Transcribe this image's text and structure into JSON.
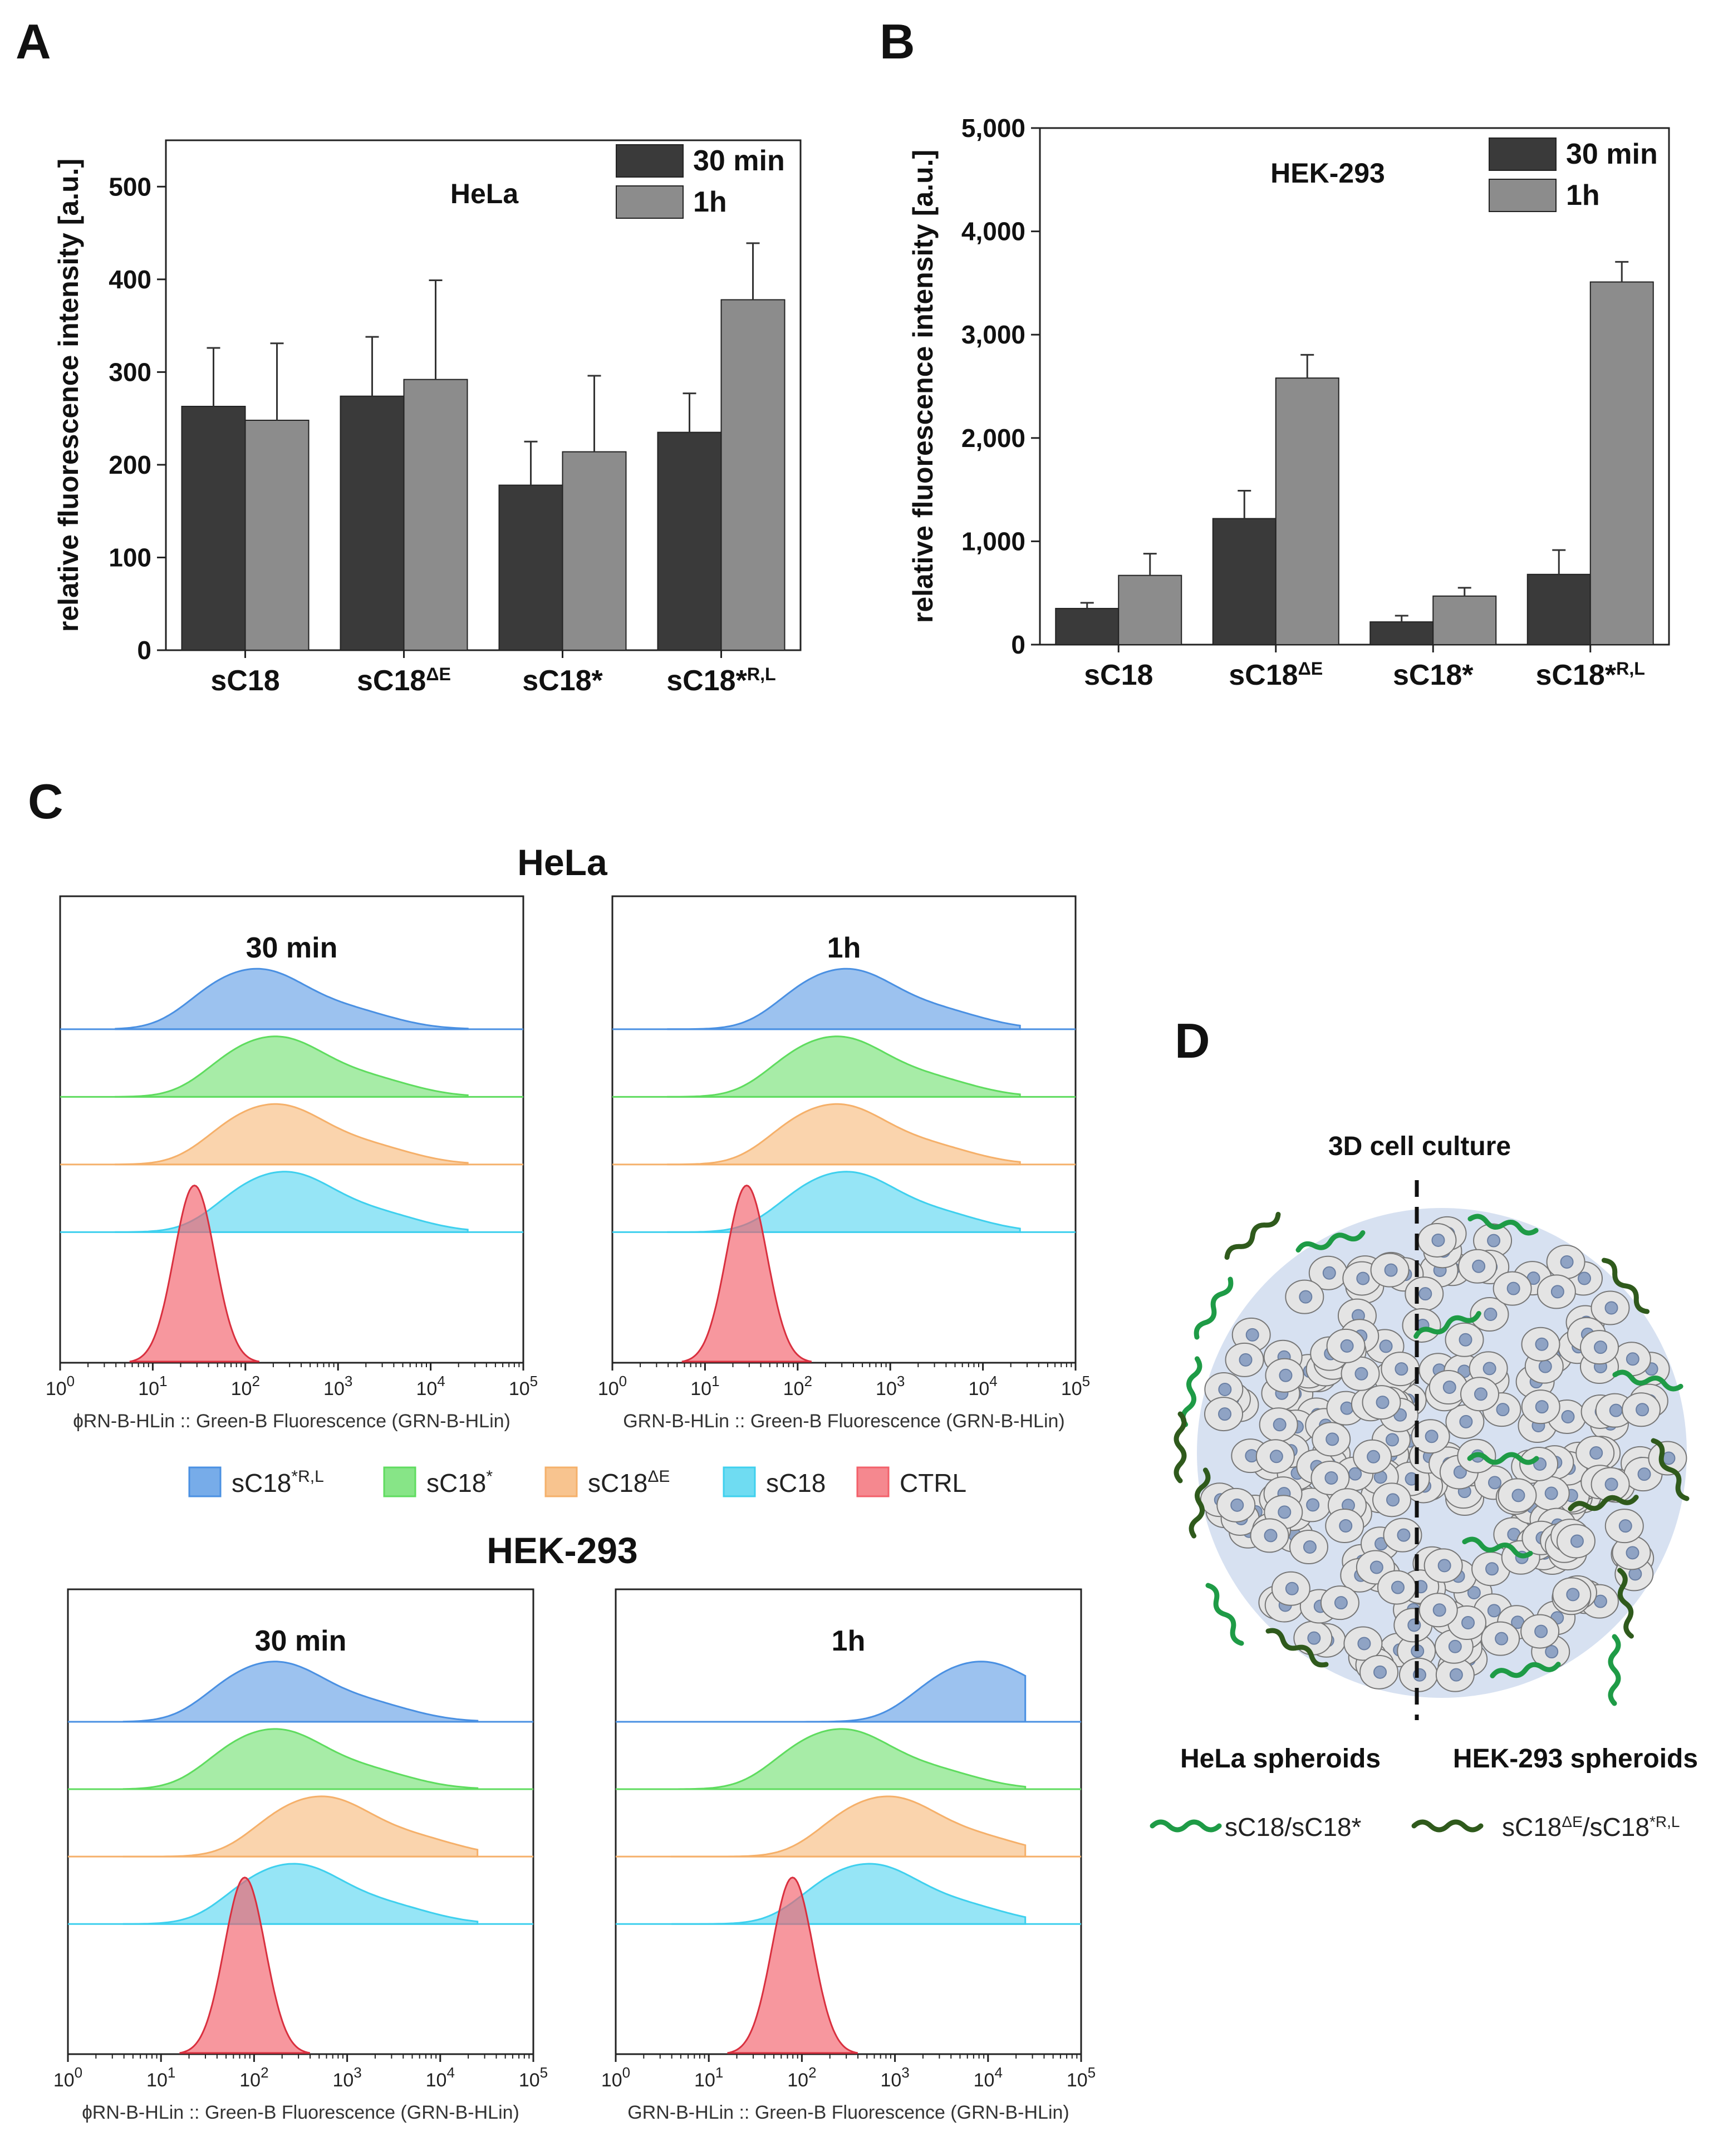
{
  "panels": {
    "A": "A",
    "B": "B",
    "C": "C",
    "D": "D"
  },
  "chart_data": [
    {
      "id": "A",
      "type": "bar",
      "title": "HeLa",
      "ylabel": "relative fluorescence intensity [a.u.]",
      "xlabel": "",
      "ylim": [
        0,
        550
      ],
      "yticks": [
        0,
        100,
        200,
        300,
        400,
        500
      ],
      "ytick_labels": [
        "0",
        "100",
        "200",
        "300",
        "400",
        "500"
      ],
      "categories": [
        "sC18",
        "sC18",
        "sC18*",
        "sC18*"
      ],
      "category_sups": [
        "",
        "ΔE",
        "",
        "R,L"
      ],
      "series": [
        {
          "name": "30 min",
          "color": "#3a3a3a",
          "values": [
            263,
            274,
            178,
            235
          ],
          "errors": [
            63,
            64,
            47,
            42
          ]
        },
        {
          "name": "1h",
          "color": "#8c8c8c",
          "values": [
            248,
            292,
            214,
            378
          ],
          "errors": [
            83,
            107,
            82,
            61
          ]
        }
      ],
      "legend": "top-right",
      "grid": false
    },
    {
      "id": "B",
      "type": "bar",
      "title": "HEK-293",
      "ylabel": "relative fluorescence intensity [a.u.]",
      "xlabel": "",
      "ylim": [
        0,
        5000
      ],
      "yticks": [
        0,
        1000,
        2000,
        3000,
        4000,
        5000
      ],
      "ytick_labels": [
        "0",
        "1,000",
        "2,000",
        "3,000",
        "4,000",
        "5,000"
      ],
      "categories": [
        "sC18",
        "sC18",
        "sC18*",
        "sC18*"
      ],
      "category_sups": [
        "",
        "ΔE",
        "",
        "R,L"
      ],
      "series": [
        {
          "name": "30 min",
          "color": "#3a3a3a",
          "values": [
            350,
            1220,
            220,
            680
          ],
          "errors": [
            55,
            270,
            60,
            235
          ]
        },
        {
          "name": "1h",
          "color": "#8c8c8c",
          "values": [
            670,
            2580,
            470,
            3510
          ],
          "errors": [
            210,
            225,
            80,
            195
          ]
        }
      ],
      "legend": "top-right",
      "grid": false
    },
    {
      "id": "C",
      "type": "area",
      "title_top": "HeLa",
      "title_bottom": "HEK-293",
      "xscale": "log",
      "xlim": [
        1,
        100000
      ],
      "xtick_labels": [
        "10",
        "10",
        "10",
        "10",
        "10",
        "10"
      ],
      "xtick_exps": [
        "0",
        "1",
        "2",
        "3",
        "4",
        "5"
      ],
      "xlabel": "GRN-B-HLin :: Green-B Fluorescence (GRN-B-HLin)",
      "xlabel_cut": "ɸRN-B-HLin :: Green-B Fluorescence (GRN-B-HLin)",
      "legend": [
        {
          "name": "sC18",
          "sup": "*R,L",
          "color": "#4a90e2"
        },
        {
          "name": "sC18",
          "sup": "*",
          "color": "#5fdc5f"
        },
        {
          "name": "sC18",
          "sup": "ΔE",
          "color": "#f5b06a"
        },
        {
          "name": "sC18",
          "sup": "",
          "color": "#3fd0ee"
        },
        {
          "name": "CTRL",
          "sup": "",
          "color": "#f2606a"
        }
      ],
      "plots": [
        {
          "cell": "HeLa",
          "time": "30 min",
          "peaks_log10": {
            "sC18*R,L": 2.2,
            "sC18*": 2.4,
            "sC18ΔE": 2.4,
            "sC18": 2.5,
            "CTRL": 1.45
          }
        },
        {
          "cell": "HeLa",
          "time": "1h",
          "peaks_log10": {
            "sC18*R,L": 2.6,
            "sC18*": 2.5,
            "sC18ΔE": 2.5,
            "sC18": 2.6,
            "CTRL": 1.45
          }
        },
        {
          "cell": "HEK-293",
          "time": "30 min",
          "peaks_log10": {
            "sC18*R,L": 2.3,
            "sC18*": 2.3,
            "sC18ΔE": 2.8,
            "sC18": 2.5,
            "CTRL": 1.9
          }
        },
        {
          "cell": "HEK-293",
          "time": "1h",
          "peaks_log10": {
            "sC18*R,L": 4.0,
            "sC18*": 2.5,
            "sC18ΔE": 3.0,
            "sC18": 2.8,
            "CTRL": 1.9
          }
        }
      ]
    }
  ],
  "diagram_D": {
    "title": "3D cell culture",
    "left_label": "HeLa spheroids",
    "right_label": "HEK-293 spheroids",
    "legend": [
      {
        "label": "sC18/sC18*",
        "color": "#1e9b46"
      },
      {
        "label": "sC18",
        "sup1": "ΔE",
        "mid": "/sC18",
        "sup2": "*R,L",
        "color": "#2f5a1c"
      }
    ]
  }
}
